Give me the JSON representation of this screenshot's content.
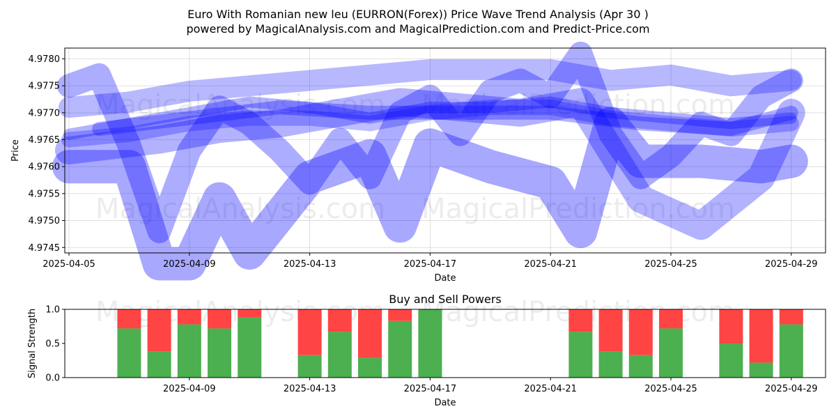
{
  "title_line1": "Euro With Romanian new leu (EURRON(Forex)) Price Wave Trend Analysis (Apr 30 )",
  "title_line2": "powered by MagicalAnalysis.com and MagicalPrediction.com and Predict-Price.com",
  "watermarks": [
    "MagicalAnalysis.com",
    "MagicalPrediction.com"
  ],
  "chart_data": [
    {
      "type": "line",
      "xlabel": "Date",
      "ylabel": "Price",
      "xlim": [
        "2025-04-05",
        "2025-04-30"
      ],
      "ylim": [
        4.9744,
        4.9782
      ],
      "x_ticks": [
        "2025-04-05",
        "2025-04-09",
        "2025-04-13",
        "2025-04-17",
        "2025-04-21",
        "2025-04-25",
        "2025-04-29"
      ],
      "y_ticks": [
        "4.9745",
        "4.9750",
        "4.9755",
        "4.9760",
        "4.9765",
        "4.9770",
        "4.9775",
        "4.9780"
      ],
      "grid": true,
      "color": "#0000ff",
      "series": [
        {
          "x": [
            "2025-04-05",
            "2025-04-07",
            "2025-04-09",
            "2025-04-11",
            "2025-04-13",
            "2025-04-15",
            "2025-04-17",
            "2025-04-19",
            "2025-04-21",
            "2025-04-23",
            "2025-04-25",
            "2025-04-27",
            "2025-04-29"
          ],
          "values": [
            4.9766,
            4.9768,
            4.977,
            4.9772,
            4.9771,
            4.9769,
            4.9771,
            4.9771,
            4.9772,
            4.977,
            4.9769,
            4.9768,
            4.9769
          ]
        },
        {
          "x": [
            "2025-04-05",
            "2025-04-07",
            "2025-04-09",
            "2025-04-11",
            "2025-04-13",
            "2025-04-15",
            "2025-04-17",
            "2025-04-19",
            "2025-04-21",
            "2025-04-23",
            "2025-04-25",
            "2025-04-27",
            "2025-04-29"
          ],
          "values": [
            4.9765,
            4.9766,
            4.9768,
            4.9769,
            4.9769,
            4.9768,
            4.977,
            4.9771,
            4.9771,
            4.9769,
            4.9768,
            4.9767,
            4.9768
          ]
        },
        {
          "x": [
            "2025-04-05",
            "2025-04-06",
            "2025-04-07",
            "2025-04-08",
            "2025-04-09",
            "2025-04-10",
            "2025-04-11",
            "2025-04-12",
            "2025-04-13",
            "2025-04-14",
            "2025-04-15",
            "2025-04-16",
            "2025-04-17",
            "2025-04-18",
            "2025-04-19",
            "2025-04-20",
            "2025-04-21",
            "2025-04-22",
            "2025-04-23",
            "2025-04-24",
            "2025-04-25",
            "2025-04-26",
            "2025-04-27",
            "2025-04-28",
            "2025-04-29"
          ],
          "values": [
            4.9775,
            4.9777,
            4.9764,
            4.9748,
            4.9763,
            4.9771,
            4.9768,
            4.9763,
            4.9757,
            4.9765,
            4.9758,
            4.977,
            4.9773,
            4.9766,
            4.9774,
            4.9776,
            4.9773,
            4.9781,
            4.9766,
            4.9758,
            4.9762,
            4.9768,
            4.9766,
            4.9773,
            4.9776
          ]
        },
        {
          "x": [
            "2025-04-05",
            "2025-04-07",
            "2025-04-08",
            "2025-04-09",
            "2025-04-10",
            "2025-04-11",
            "2025-04-13",
            "2025-04-15",
            "2025-04-16",
            "2025-04-17",
            "2025-04-19",
            "2025-04-21",
            "2025-04-22",
            "2025-04-23",
            "2025-04-24",
            "2025-04-26",
            "2025-04-28",
            "2025-04-29"
          ],
          "values": [
            4.976,
            4.976,
            4.9742,
            4.9742,
            4.9754,
            4.9744,
            4.9758,
            4.9762,
            4.9749,
            4.9764,
            4.976,
            4.9757,
            4.9748,
            4.9768,
            4.9761,
            4.9761,
            4.976,
            4.9761
          ]
        },
        {
          "x": [
            "2025-04-05",
            "2025-04-07",
            "2025-04-09",
            "2025-04-11",
            "2025-04-13",
            "2025-04-15",
            "2025-04-17",
            "2025-04-19",
            "2025-04-21",
            "2025-04-23",
            "2025-04-25",
            "2025-04-27",
            "2025-04-29"
          ],
          "values": [
            4.9771,
            4.9772,
            4.9774,
            4.9775,
            4.9776,
            4.9777,
            4.9778,
            4.9778,
            4.9778,
            4.9776,
            4.9777,
            4.9775,
            4.9776
          ]
        },
        {
          "x": [
            "2025-04-05",
            "2025-04-08",
            "2025-04-10",
            "2025-04-12",
            "2025-04-14",
            "2025-04-16",
            "2025-04-18",
            "2025-04-20",
            "2025-04-22",
            "2025-04-24",
            "2025-04-26",
            "2025-04-28",
            "2025-04-29"
          ],
          "values": [
            4.9763,
            4.9765,
            4.9767,
            4.9768,
            4.977,
            4.9772,
            4.9771,
            4.977,
            4.9772,
            4.9754,
            4.9749,
            4.9758,
            4.977
          ]
        },
        {
          "x": [
            "2025-04-06",
            "2025-04-09",
            "2025-04-12",
            "2025-04-15",
            "2025-04-18",
            "2025-04-21",
            "2025-04-24",
            "2025-04-27",
            "2025-04-29"
          ],
          "values": [
            4.9767,
            4.9769,
            4.9771,
            4.977,
            4.977,
            4.977,
            4.9768,
            4.9767,
            4.977
          ]
        }
      ]
    },
    {
      "type": "bar",
      "title": "Buy and Sell Powers",
      "xlabel": "Date",
      "ylabel": "Signal Strength",
      "ylim": [
        0.0,
        1.0
      ],
      "y_ticks": [
        "0.0",
        "0.5",
        "1.0"
      ],
      "x_ticks": [
        "2025-04-09",
        "2025-04-13",
        "2025-04-17",
        "2025-04-21",
        "2025-04-25",
        "2025-04-29"
      ],
      "buy_color": "#4caf50",
      "sell_color": "#ff4444",
      "dates": [
        "2025-04-07",
        "2025-04-08",
        "2025-04-09",
        "2025-04-10",
        "2025-04-11",
        "2025-04-13",
        "2025-04-14",
        "2025-04-15",
        "2025-04-16",
        "2025-04-17",
        "2025-04-22",
        "2025-04-23",
        "2025-04-24",
        "2025-04-25",
        "2025-04-27",
        "2025-04-28",
        "2025-04-29"
      ],
      "buy": [
        0.72,
        0.38,
        0.78,
        0.72,
        0.88,
        0.33,
        0.67,
        0.29,
        0.83,
        1.0,
        0.67,
        0.38,
        0.33,
        0.72,
        0.5,
        0.22,
        0.78
      ],
      "sell": [
        0.28,
        0.62,
        0.22,
        0.28,
        0.12,
        0.67,
        0.33,
        0.71,
        0.17,
        0.0,
        0.33,
        0.62,
        0.67,
        0.28,
        0.5,
        0.78,
        0.22
      ]
    }
  ]
}
